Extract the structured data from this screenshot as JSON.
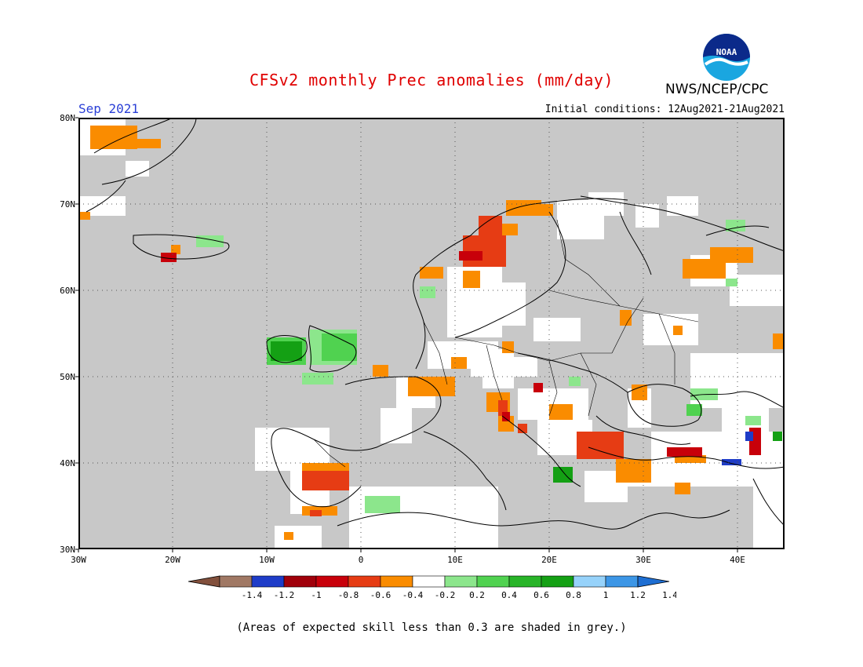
{
  "header": {
    "title": "CFSv2 monthly Prec anomalies (mm/day)",
    "agency": "NWS/NCEP/CPC",
    "month": "Sep 2021",
    "initial_conditions": "Initial conditions: 12Aug2021-21Aug2021"
  },
  "logo": {
    "icon": "noaa-logo",
    "text": "NOAA"
  },
  "map": {
    "lon_range": [
      -30,
      45
    ],
    "lat_range": [
      30,
      80
    ],
    "lon_ticks": [
      "30W",
      "20W",
      "10W",
      "0",
      "10E",
      "20E",
      "30E",
      "40E"
    ],
    "lat_ticks": [
      "80N",
      "70N",
      "60N",
      "50N",
      "40N",
      "30N"
    ],
    "background_color": "#c8c8c8",
    "grid": "dotted"
  },
  "colorbar": {
    "labels": [
      "-1.4",
      "-1.2",
      "-1",
      "-0.8",
      "-0.6",
      "-0.4",
      "-0.2",
      "0.2",
      "0.4",
      "0.6",
      "0.8",
      "1",
      "1.2",
      "1.4"
    ],
    "colors": [
      "#82503c",
      "#a07864",
      "#1e3cc8",
      "#a0000a",
      "#c8000a",
      "#e63c14",
      "#fa8c00",
      "#ffffff",
      "#8ce68c",
      "#50d250",
      "#28b428",
      "#14a014",
      "#96d2fa",
      "#3c96e6",
      "#1e6ed2"
    ]
  },
  "footnote": "(Areas of expected skill less than 0.3 are shaded in grey.)"
}
